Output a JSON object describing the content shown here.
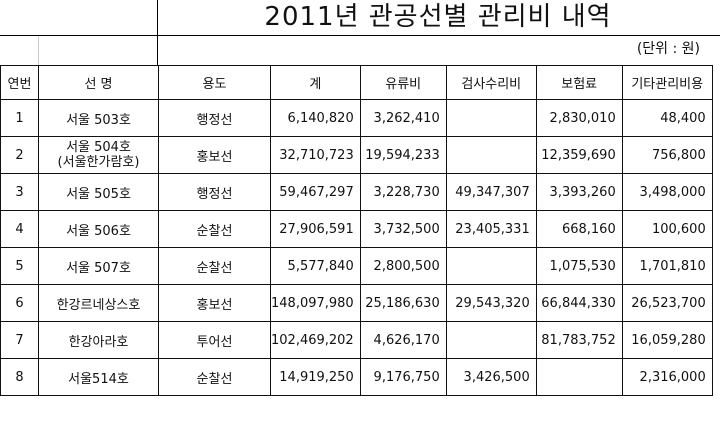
{
  "title": "2011년 관공선별 관리비 내역",
  "unit_note": "(단위 : 원)",
  "columns": [
    "연번",
    "선 명",
    "용도",
    "계",
    "유류비",
    "검사수리비",
    "보험료",
    "기타관리비용"
  ],
  "rows": [
    {
      "no": "1",
      "name": "서울 503호",
      "name2": "",
      "use": "행정선",
      "total": "6,140,820",
      "fuel": "3,262,410",
      "repair": "",
      "insurance": "2,830,010",
      "other": "48,400"
    },
    {
      "no": "2",
      "name": "서울 504호",
      "name2": "(서울한가람호)",
      "use": "홍보선",
      "total": "32,710,723",
      "fuel": "19,594,233",
      "repair": "",
      "insurance": "12,359,690",
      "other": "756,800"
    },
    {
      "no": "3",
      "name": "서울 505호",
      "name2": "",
      "use": "행정선",
      "total": "59,467,297",
      "fuel": "3,228,730",
      "repair": "49,347,307",
      "insurance": "3,393,260",
      "other": "3,498,000"
    },
    {
      "no": "4",
      "name": "서울 506호",
      "name2": "",
      "use": "순찰선",
      "total": "27,906,591",
      "fuel": "3,732,500",
      "repair": "23,405,331",
      "insurance": "668,160",
      "other": "100,600"
    },
    {
      "no": "5",
      "name": "서울 507호",
      "name2": "",
      "use": "순찰선",
      "total": "5,577,840",
      "fuel": "2,800,500",
      "repair": "",
      "insurance": "1,075,530",
      "other": "1,701,810"
    },
    {
      "no": "6",
      "name": "한강르네상스호",
      "name2": "",
      "use": "홍보선",
      "total": "148,097,980",
      "fuel": "25,186,630",
      "repair": "29,543,320",
      "insurance": "66,844,330",
      "other": "26,523,700"
    },
    {
      "no": "7",
      "name": "한강아라호",
      "name2": "",
      "use": "투어선",
      "total": "102,469,202",
      "fuel": "4,626,170",
      "repair": "",
      "insurance": "81,783,752",
      "other": "16,059,280"
    },
    {
      "no": "8",
      "name": "서울514호",
      "name2": "",
      "use": "순찰선",
      "total": "14,919,250",
      "fuel": "9,176,750",
      "repair": "3,426,500",
      "insurance": "",
      "other": "2,316,000"
    }
  ]
}
